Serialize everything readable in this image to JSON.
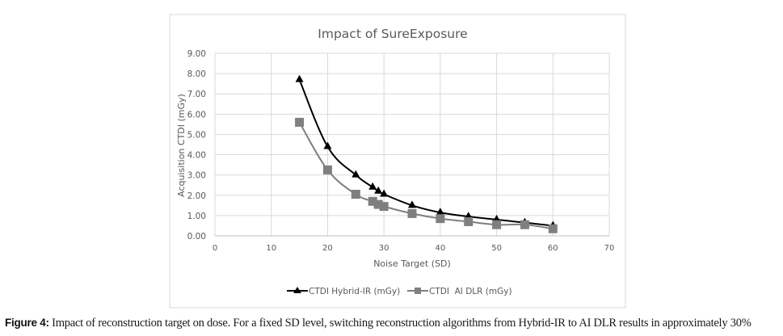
{
  "chart_data": {
    "type": "line",
    "title": "Impact of SureExposure",
    "xlabel": "Noise Target (SD)",
    "ylabel": "Acquisition CTDI (mGy)",
    "xlim": [
      0,
      70
    ],
    "ylim": [
      0,
      9
    ],
    "x_ticks": [
      "0",
      "10",
      "20",
      "30",
      "40",
      "50",
      "60",
      "70"
    ],
    "y_ticks": [
      "0.00",
      "1.00",
      "2.00",
      "3.00",
      "4.00",
      "5.00",
      "6.00",
      "7.00",
      "8.00",
      "9.00"
    ],
    "grid": true,
    "legend_position": "bottom",
    "series": [
      {
        "name": "CTDI Hybrid-IR (mGy)",
        "color": "#000000",
        "marker": "triangle",
        "x": [
          15,
          20,
          25,
          28,
          29,
          30,
          35,
          40,
          45,
          50,
          55,
          60
        ],
        "y": [
          7.7,
          4.4,
          3.0,
          2.4,
          2.2,
          2.05,
          1.5,
          1.15,
          0.95,
          0.8,
          0.65,
          0.5
        ]
      },
      {
        "name": "CTDI  AI DLR (mGy)",
        "color": "#7f7f7f",
        "marker": "square",
        "x": [
          15,
          20,
          25,
          28,
          29,
          30,
          35,
          40,
          45,
          50,
          55,
          60
        ],
        "y": [
          5.6,
          3.25,
          2.05,
          1.7,
          1.55,
          1.45,
          1.1,
          0.85,
          0.7,
          0.55,
          0.55,
          0.35
        ]
      }
    ]
  },
  "caption": {
    "label": "Figure 4:",
    "text": " Impact of reconstruction target on dose. For a fixed SD level, switching reconstruction algorithms from Hybrid-IR to AI DLR results in approximately 30%"
  }
}
